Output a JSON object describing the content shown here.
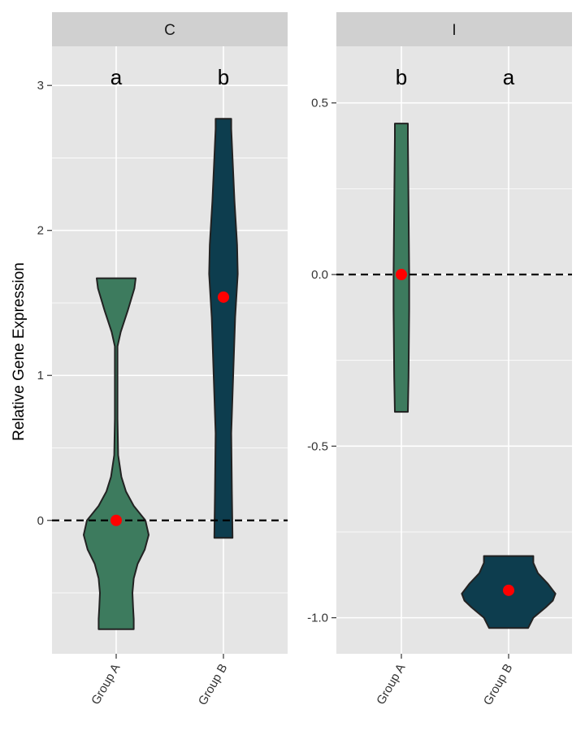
{
  "chart_data": {
    "type": "violin",
    "ylabel": "Relative Gene Expression",
    "categories": [
      "Group A",
      "Group B"
    ],
    "reference_line": 0,
    "colors": {
      "Group A": "#3d7b5e",
      "Group B": "#0d3d4e",
      "point": "#ff0000",
      "panel_bg": "#e5e5e5",
      "strip_bg": "#d0d0d0",
      "grid": "#ffffff"
    },
    "panels": [
      {
        "title": "C",
        "ylim": [
          -0.92,
          3.27
        ],
        "yticks": [
          0,
          1,
          2,
          3
        ],
        "ytick_labels": [
          "0",
          "1",
          "2",
          "3"
        ],
        "groups": [
          {
            "name": "Group A",
            "point": 0,
            "letter": "a",
            "range": [
              -0.75,
              1.67
            ],
            "profile": [
              [
                -0.75,
                0.27
              ],
              [
                -0.68,
                0.27
              ],
              [
                -0.6,
                0.26
              ],
              [
                -0.5,
                0.25
              ],
              [
                -0.4,
                0.27
              ],
              [
                -0.3,
                0.33
              ],
              [
                -0.2,
                0.44
              ],
              [
                -0.1,
                0.5
              ],
              [
                0,
                0.45
              ],
              [
                0.1,
                0.27
              ],
              [
                0.2,
                0.15
              ],
              [
                0.3,
                0.08
              ],
              [
                0.45,
                0.03
              ],
              [
                0.7,
                0.02
              ],
              [
                1.0,
                0.02
              ],
              [
                1.2,
                0.02
              ],
              [
                1.3,
                0.07
              ],
              [
                1.45,
                0.18
              ],
              [
                1.6,
                0.28
              ],
              [
                1.67,
                0.3
              ]
            ]
          },
          {
            "name": "Group B",
            "point": 1.54,
            "letter": "b",
            "range": [
              -0.12,
              2.77
            ],
            "profile": [
              [
                -0.12,
                0.14
              ],
              [
                0.2,
                0.13
              ],
              [
                0.6,
                0.12
              ],
              [
                1.0,
                0.15
              ],
              [
                1.4,
                0.18
              ],
              [
                1.7,
                0.22
              ],
              [
                1.9,
                0.21
              ],
              [
                2.2,
                0.17
              ],
              [
                2.5,
                0.14
              ],
              [
                2.7,
                0.12
              ],
              [
                2.77,
                0.12
              ]
            ]
          }
        ]
      },
      {
        "title": "I",
        "ylim": [
          -1.105,
          0.665
        ],
        "yticks": [
          0.5,
          0,
          -0.5,
          -1
        ],
        "ytick_labels": [
          "0.5",
          "0.0",
          "-0.5",
          "-1.0"
        ],
        "groups": [
          {
            "name": "Group A",
            "point": 0,
            "letter": "b",
            "range": [
              -0.4,
              0.44
            ],
            "profile": [
              [
                -0.4,
                0.1
              ],
              [
                -0.3,
                0.11
              ],
              [
                -0.1,
                0.12
              ],
              [
                0.0,
                0.12
              ],
              [
                0.2,
                0.11
              ],
              [
                0.4,
                0.1
              ],
              [
                0.44,
                0.1
              ]
            ]
          },
          {
            "name": "Group B",
            "point": -0.92,
            "letter": "a",
            "range": [
              -1.03,
              -0.82
            ],
            "profile": [
              [
                -1.03,
                0.3
              ],
              [
                -1.0,
                0.38
              ],
              [
                -0.97,
                0.57
              ],
              [
                -0.95,
                0.68
              ],
              [
                -0.93,
                0.72
              ],
              [
                -0.9,
                0.6
              ],
              [
                -0.87,
                0.45
              ],
              [
                -0.84,
                0.38
              ],
              [
                -0.82,
                0.38
              ]
            ]
          }
        ]
      }
    ]
  }
}
